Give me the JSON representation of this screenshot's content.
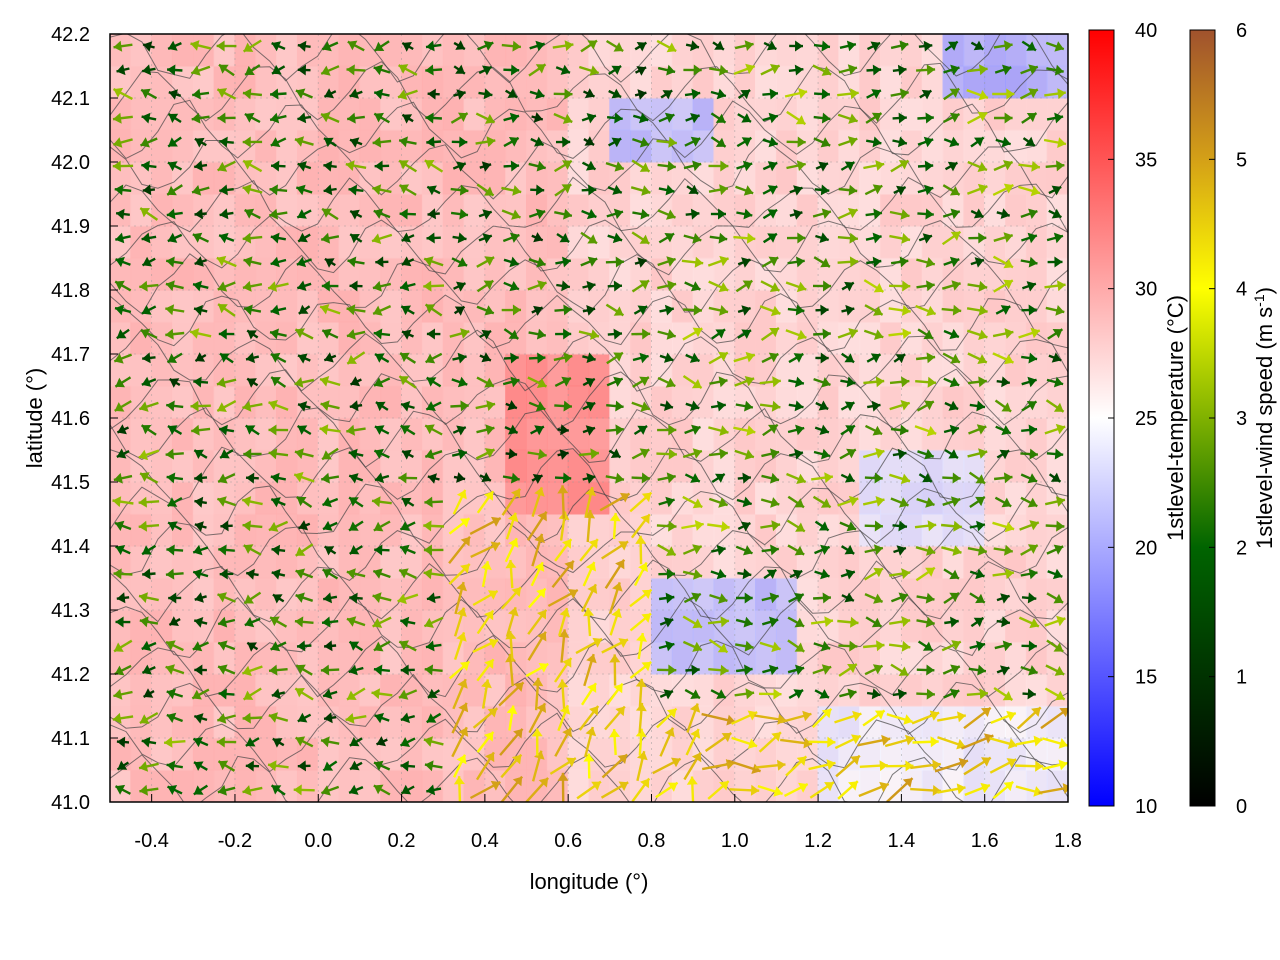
{
  "chart_data": {
    "type": "heatmap",
    "title": "",
    "xlabel": "longitude (°)",
    "ylabel": "latitude (°)",
    "xlim": [
      -0.5,
      1.8
    ],
    "ylim": [
      41.0,
      42.2
    ],
    "xticks": [
      "-0.4",
      "-0.2",
      "0.0",
      "0.2",
      "0.4",
      "0.6",
      "0.8",
      "1.0",
      "1.2",
      "1.4",
      "1.6",
      "1.8"
    ],
    "yticks": [
      "41.0",
      "41.1",
      "41.2",
      "41.3",
      "41.4",
      "41.5",
      "41.6",
      "41.7",
      "41.8",
      "41.9",
      "42.0",
      "42.1",
      "42.2"
    ],
    "grid": true,
    "layers": [
      {
        "name": "1stlevel-temperature",
        "kind": "filled field with contour lines"
      },
      {
        "name": "1stlevel-wind speed",
        "kind": "vector arrows colored by speed"
      }
    ],
    "colorbars": [
      {
        "label": "1stlevel-temperature (°C)",
        "range": [
          10,
          40
        ],
        "ticks": [
          "10",
          "15",
          "20",
          "25",
          "30",
          "35",
          "40"
        ],
        "colors": [
          "#0000ff",
          "#ffffff",
          "#ff0000"
        ],
        "mid": 25
      },
      {
        "label_main": "1stlevel-wind speed (m s",
        "label_sup": "-1",
        "label_end": ")",
        "range": [
          0,
          6
        ],
        "ticks": [
          "0",
          "1",
          "2",
          "3",
          "4",
          "5",
          "6"
        ],
        "colors": [
          "#000000",
          "#006400",
          "#ffff00",
          "#d4a017",
          "#a0522d"
        ]
      }
    ],
    "temperature_regions": [
      {
        "lon": [
          -0.5,
          0.6
        ],
        "lat": [
          41.0,
          42.2
        ],
        "temp_c": 29
      },
      {
        "lon": [
          0.45,
          0.7
        ],
        "lat": [
          41.45,
          41.7
        ],
        "temp_c": 32
      },
      {
        "lon": [
          0.8,
          1.15
        ],
        "lat": [
          41.2,
          41.35
        ],
        "temp_c": 21
      },
      {
        "lon": [
          1.5,
          1.8
        ],
        "lat": [
          42.1,
          42.2
        ],
        "temp_c": 20
      },
      {
        "lon": [
          0.7,
          0.95
        ],
        "lat": [
          42.0,
          42.1
        ],
        "temp_c": 21
      },
      {
        "lon": [
          1.2,
          1.8
        ],
        "lat": [
          41.0,
          41.15
        ],
        "temp_c": 24
      },
      {
        "lon": [
          1.3,
          1.6
        ],
        "lat": [
          41.4,
          41.55
        ],
        "temp_c": 23
      }
    ],
    "wind_regions": [
      {
        "lon": [
          -0.5,
          0.3
        ],
        "lat": [
          41.0,
          42.2
        ],
        "dir_deg": 180,
        "speed": 1.6
      },
      {
        "lon": [
          0.3,
          0.9
        ],
        "lat": [
          41.0,
          41.5
        ],
        "dir_deg": 60,
        "speed": 3.8
      },
      {
        "lon": [
          0.9,
          1.8
        ],
        "lat": [
          41.0,
          41.15
        ],
        "dir_deg": 10,
        "speed": 3.9
      },
      {
        "lon": [
          0.8,
          1.8
        ],
        "lat": [
          41.15,
          42.2
        ],
        "dir_deg": 0,
        "speed": 1.8
      },
      {
        "lon": [
          0.3,
          0.8
        ],
        "lat": [
          41.5,
          42.2
        ],
        "dir_deg": 0,
        "speed": 1.5
      }
    ]
  }
}
